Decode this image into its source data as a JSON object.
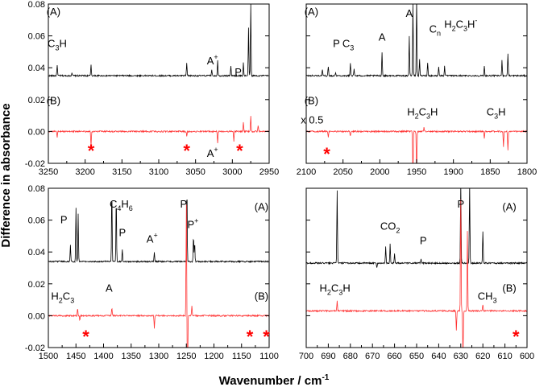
{
  "figure": {
    "ylabel": "Difference in absorbance",
    "xlabel": "Wavenumber / cm",
    "xlabel_sup": "-1"
  },
  "colors": {
    "trace_a": "#000000",
    "trace_b": "#ff3333",
    "star": "#ff0000",
    "frame": "#000000"
  },
  "chart_data": [
    {
      "type": "line",
      "panel": "top-left",
      "xlim": [
        3250,
        2950
      ],
      "ylim": [
        -0.02,
        0.08
      ],
      "xticks": [
        "3250",
        "3200",
        "3150",
        "3100",
        "3050",
        "3000",
        "2950"
      ],
      "yticks": [
        "0.08",
        "0.06",
        "0.04",
        "0.02",
        "0.00",
        "-0.02"
      ],
      "trace_labels": [
        "(A)",
        "(B)"
      ],
      "series": [
        {
          "name": "(A)",
          "baseline": 0.035,
          "peaks": [
            [
              3238,
              0.007
            ],
            [
              3218,
              0.002
            ],
            [
              3192,
              0.007
            ],
            [
              3062,
              0.008
            ],
            [
              3028,
              0.004
            ],
            [
              3020,
              0.01
            ],
            [
              3002,
              0.006
            ],
            [
              2985,
              0.008
            ],
            [
              2978,
              0.03
            ],
            [
              2975,
              0.045
            ]
          ]
        },
        {
          "name": "(B)",
          "baseline": 0.0,
          "peaks": [
            [
              3238,
              -0.004
            ],
            [
              3192,
              -0.009
            ],
            [
              3062,
              -0.003
            ],
            [
              3020,
              -0.007
            ],
            [
              2998,
              -0.006
            ],
            [
              2985,
              0.006
            ],
            [
              2975,
              0.01
            ],
            [
              2965,
              0.004
            ]
          ]
        }
      ],
      "labels": [
        {
          "text": "(A)",
          "x": 3243,
          "y": 0.073
        },
        {
          "text": "C",
          "sub": "3",
          "after": "H",
          "x": 3238,
          "y": 0.053
        },
        {
          "text": "A",
          "sup": "+",
          "x": 3027,
          "y": 0.042
        },
        {
          "text": "P",
          "x": 2992,
          "y": 0.035
        },
        {
          "text": "(B)",
          "x": 3243,
          "y": 0.017
        },
        {
          "text": "A",
          "sup": "+",
          "x": 3027,
          "y": -0.016
        }
      ],
      "stars": [
        [
          3192,
          -0.012
        ],
        [
          3062,
          -0.012
        ],
        [
          2990,
          -0.012
        ]
      ]
    },
    {
      "type": "line",
      "panel": "top-right",
      "xlim": [
        2100,
        1800
      ],
      "ylim": [
        -0.02,
        0.08
      ],
      "xticks": [
        "2100",
        "2050",
        "2000",
        "1950",
        "1900",
        "1850",
        "1800"
      ],
      "yticks": [],
      "trace_labels": [
        "(A)",
        "(B)"
      ],
      "series": [
        {
          "name": "(A)",
          "baseline": 0.035,
          "peaks": [
            [
              2078,
              0.004
            ],
            [
              2070,
              0.006
            ],
            [
              2060,
              0.002
            ],
            [
              2040,
              0.008
            ],
            [
              2035,
              0.004
            ],
            [
              1997,
              0.015
            ],
            [
              1960,
              0.025
            ],
            [
              1955,
              0.045
            ],
            [
              1950,
              0.048
            ],
            [
              1946,
              0.01
            ],
            [
              1935,
              0.008
            ],
            [
              1920,
              0.006
            ],
            [
              1912,
              0.006
            ],
            [
              1858,
              0.006
            ],
            [
              1834,
              0.01
            ],
            [
              1826,
              0.014
            ]
          ]
        },
        {
          "name": "(B)",
          "baseline": 0.0,
          "peaks": [
            [
              2070,
              -0.004
            ],
            [
              2040,
              -0.003
            ],
            [
              1955,
              -0.03
            ],
            [
              1950,
              -0.028
            ],
            [
              1940,
              0.003
            ],
            [
              1858,
              -0.004
            ],
            [
              1832,
              -0.01
            ],
            [
              1826,
              -0.012
            ]
          ]
        }
      ],
      "labels": [
        {
          "text": "(A)",
          "x": 2093,
          "y": 0.073
        },
        {
          "text": "A",
          "x": 1960,
          "y": 0.072
        },
        {
          "text": "P",
          "x": 2059,
          "y": 0.053
        },
        {
          "text": "C",
          "sub": "3",
          "x": 2043,
          "y": 0.053
        },
        {
          "text": "A",
          "x": 1997,
          "y": 0.057
        },
        {
          "text": "C",
          "sub": "n",
          "x": 1925,
          "y": 0.062
        },
        {
          "text": "H",
          "sub": "2",
          "after": "C",
          "sub2": "3",
          "after2": "H",
          "sup": "-",
          "x": 1890,
          "y": 0.065
        },
        {
          "text": "(B)",
          "x": 2093,
          "y": 0.017
        },
        {
          "text": "x 0.5",
          "x": 2092,
          "y": 0.005
        },
        {
          "text": "H",
          "sub": "2",
          "after": "C",
          "sub2": "3",
          "after2": "H",
          "x": 1942,
          "y": 0.01
        },
        {
          "text": "C",
          "sub": "3",
          "after": "H",
          "x": 1842,
          "y": 0.01
        }
      ],
      "stars": [
        [
          2072,
          -0.014
        ]
      ]
    },
    {
      "type": "line",
      "panel": "bottom-left",
      "xlim": [
        1500,
        1100
      ],
      "ylim": [
        -0.02,
        0.08
      ],
      "xticks": [
        "1500",
        "1450",
        "1400",
        "1350",
        "1300",
        "1250",
        "1200",
        "1150",
        "1100"
      ],
      "yticks": [
        "0.08",
        "0.06",
        "0.04",
        "0.02",
        "0.00",
        "-0.02"
      ],
      "trace_labels": [
        "(A)",
        "(B)"
      ],
      "series": [
        {
          "name": "(A)",
          "baseline": 0.034,
          "peaks": [
            [
              1460,
              0.01
            ],
            [
              1450,
              0.034
            ],
            [
              1446,
              0.03
            ],
            [
              1385,
              0.044
            ],
            [
              1377,
              0.04
            ],
            [
              1366,
              0.008
            ],
            [
              1308,
              0.006
            ],
            [
              1249,
              0.046
            ],
            [
              1237,
              0.016
            ],
            [
              1235,
              0.012
            ]
          ]
        },
        {
          "name": "(B)",
          "baseline": 0.0,
          "peaks": [
            [
              1447,
              0.005
            ],
            [
              1443,
              -0.003
            ],
            [
              1385,
              0.005
            ],
            [
              1308,
              -0.008
            ],
            [
              1250,
              0.07
            ],
            [
              1248,
              -0.05
            ],
            [
              1240,
              0.006
            ]
          ]
        }
      ],
      "labels": [
        {
          "text": "P",
          "x": 1472,
          "y": 0.058
        },
        {
          "text": "C",
          "sub": "4",
          "after": "H",
          "sub2": "6",
          "x": 1368,
          "y": 0.068
        },
        {
          "text": "P",
          "x": 1366,
          "y": 0.05
        },
        {
          "text": "A",
          "sup": "+",
          "x": 1312,
          "y": 0.046
        },
        {
          "text": "P",
          "x": 1255,
          "y": 0.068
        },
        {
          "text": "P",
          "sup": "+",
          "x": 1238,
          "y": 0.055
        },
        {
          "text": "(A)",
          "x": 1114,
          "y": 0.066
        },
        {
          "text": "H",
          "sub": "2",
          "after": "C",
          "sub2": "3",
          "x": 1474,
          "y": 0.01
        },
        {
          "text": "A",
          "x": 1390,
          "y": 0.015
        },
        {
          "text": "(B)",
          "x": 1114,
          "y": 0.01
        }
      ],
      "stars": [
        [
          1432,
          -0.013
        ],
        [
          1135,
          -0.013
        ],
        [
          1105,
          -0.013
        ]
      ]
    },
    {
      "type": "line",
      "panel": "bottom-right",
      "xlim": [
        700,
        600
      ],
      "ylim": [
        -0.02,
        0.08
      ],
      "xticks": [
        "700",
        "690",
        "680",
        "670",
        "660",
        "650",
        "640",
        "630",
        "620",
        "610",
        "600"
      ],
      "yticks": [],
      "trace_labels": [
        "(A)",
        "(B)"
      ],
      "series": [
        {
          "name": "(A)",
          "baseline": 0.033,
          "peaks": [
            [
              686,
              0.046
            ],
            [
              668,
              -0.003
            ],
            [
              664,
              0.01
            ],
            [
              662,
              0.012
            ],
            [
              660,
              0.006
            ],
            [
              648,
              0.003
            ],
            [
              630,
              0.05
            ],
            [
              626,
              0.05
            ],
            [
              620,
              0.02
            ]
          ]
        },
        {
          "name": "(B)",
          "baseline": 0.003,
          "peaks": [
            [
              686,
              0.006
            ],
            [
              632,
              -0.012
            ],
            [
              630,
              0.07
            ],
            [
              629,
              -0.03
            ],
            [
              627,
              0.05
            ],
            [
              620,
              0.004
            ]
          ]
        }
      ],
      "labels": [
        {
          "text": "(A)",
          "x": 608,
          "y": 0.066
        },
        {
          "text": "CO",
          "sub": "2",
          "x": 662,
          "y": 0.054
        },
        {
          "text": "P",
          "x": 647,
          "y": 0.045
        },
        {
          "text": "P",
          "x": 630,
          "y": 0.068
        },
        {
          "text": "H",
          "sub": "2",
          "after": "C",
          "sub2": "3",
          "after2": "H",
          "x": 687,
          "y": 0.015
        },
        {
          "text": "CH",
          "sub": "3",
          "x": 618,
          "y": 0.01
        },
        {
          "text": "(B)",
          "x": 608,
          "y": 0.015
        }
      ],
      "stars": [
        [
          605,
          -0.013
        ]
      ]
    }
  ]
}
